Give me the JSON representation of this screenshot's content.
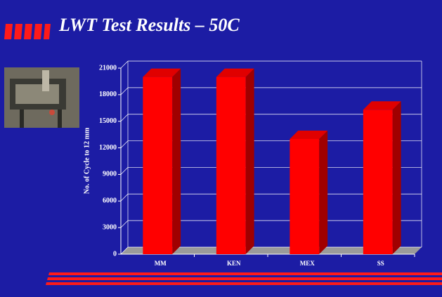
{
  "chart_data": {
    "type": "bar",
    "title": "LWT Test Results – 50C",
    "y_label": "No. of Cycle to 12 mm",
    "categories": [
      "MM",
      "KEN",
      "MEX",
      "SS"
    ],
    "values": [
      20000,
      20000,
      13000,
      16300
    ],
    "color": "#ff0000",
    "ylim": [
      0,
      21000
    ],
    "yticks": [
      0,
      3000,
      6000,
      9000,
      12000,
      15000,
      18000,
      21000
    ],
    "grid": true
  }
}
